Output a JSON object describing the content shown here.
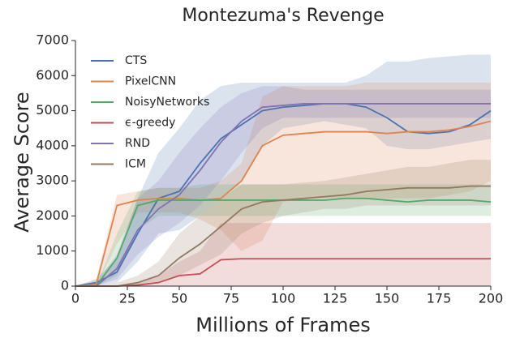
{
  "chart_data": {
    "type": "line",
    "title": "Montezuma's Revenge",
    "xlabel": "Millions of Frames",
    "ylabel": "Average Score",
    "x": [
      0,
      10,
      20,
      30,
      40,
      50,
      60,
      70,
      80,
      90,
      100,
      110,
      120,
      130,
      140,
      150,
      160,
      170,
      180,
      190,
      200
    ],
    "xlim": [
      0,
      200
    ],
    "xticks": [
      0,
      25,
      50,
      75,
      100,
      125,
      150,
      175,
      200
    ],
    "ylim": [
      0,
      7000
    ],
    "yticks": [
      0,
      1000,
      2000,
      3000,
      4000,
      5000,
      6000,
      7000
    ],
    "legend": "upper left",
    "series": [
      {
        "name": "CTS",
        "color": "#4c72b0",
        "values": [
          0,
          100,
          400,
          1500,
          2500,
          2700,
          3500,
          4200,
          4600,
          5000,
          5100,
          5150,
          5200,
          5200,
          5100,
          4800,
          4400,
          4350,
          4400,
          4600,
          5000
        ],
        "upper": [
          0,
          200,
          800,
          2500,
          3800,
          4500,
          5300,
          5700,
          5800,
          5800,
          5800,
          5800,
          5800,
          5800,
          6000,
          6400,
          6400,
          6500,
          6550,
          6600,
          6600
        ],
        "lower": [
          0,
          0,
          100,
          700,
          1500,
          1600,
          2000,
          2500,
          3000,
          4000,
          4500,
          4600,
          4700,
          4600,
          4500,
          4000,
          3900,
          3900,
          4000,
          4100,
          4200
        ]
      },
      {
        "name": "PixelCNN",
        "color": "#dd8452",
        "values": [
          0,
          50,
          2300,
          2450,
          2500,
          2500,
          2450,
          2500,
          3000,
          4000,
          4300,
          4350,
          4400,
          4400,
          4400,
          4350,
          4400,
          4400,
          4450,
          4550,
          4700
        ],
        "upper": [
          0,
          200,
          2600,
          2700,
          2800,
          2800,
          2800,
          3000,
          3500,
          5400,
          5700,
          5700,
          5700,
          5700,
          5800,
          5800,
          5800,
          5800,
          5800,
          5800,
          5800
        ],
        "lower": [
          0,
          0,
          1200,
          2100,
          2100,
          2100,
          1900,
          1600,
          1000,
          1300,
          2400,
          2500,
          2500,
          2500,
          2500,
          2500,
          2500,
          2500,
          2600,
          2700,
          3000
        ]
      },
      {
        "name": "NoisyNetworks",
        "color": "#55a868",
        "values": [
          0,
          0,
          800,
          2300,
          2450,
          2450,
          2450,
          2450,
          2450,
          2450,
          2450,
          2450,
          2450,
          2500,
          2500,
          2450,
          2400,
          2450,
          2450,
          2450,
          2400
        ],
        "upper": [
          0,
          0,
          1500,
          2700,
          2800,
          2800,
          2900,
          2900,
          2900,
          2900,
          2900,
          2900,
          2900,
          2900,
          2900,
          2900,
          2900,
          2900,
          2900,
          2900,
          2900
        ],
        "lower": [
          0,
          0,
          300,
          1600,
          2000,
          2000,
          2000,
          2000,
          2000,
          2000,
          2000,
          2000,
          2000,
          2000,
          2000,
          2000,
          2000,
          2000,
          2000,
          2000,
          2000
        ]
      },
      {
        "name": "ϵ-greedy",
        "color": "#c44e52",
        "values": [
          0,
          0,
          0,
          30,
          100,
          300,
          350,
          750,
          780,
          780,
          780,
          780,
          780,
          780,
          780,
          780,
          780,
          780,
          780,
          780,
          780
        ],
        "upper": [
          0,
          0,
          0,
          100,
          300,
          700,
          1000,
          1800,
          1800,
          1800,
          1800,
          1800,
          1800,
          1800,
          1800,
          1800,
          1800,
          1800,
          1800,
          1800,
          1800
        ],
        "lower": [
          0,
          0,
          0,
          0,
          0,
          0,
          0,
          0,
          0,
          0,
          0,
          0,
          0,
          0,
          0,
          0,
          0,
          0,
          0,
          0,
          0
        ]
      },
      {
        "name": "RND",
        "color": "#8172b2",
        "values": [
          0,
          0,
          500,
          1600,
          2200,
          2600,
          3300,
          4100,
          4700,
          5100,
          5150,
          5200,
          5200,
          5200,
          5200,
          5200,
          5200,
          5200,
          5200,
          5200,
          5200
        ],
        "upper": [
          0,
          100,
          900,
          2500,
          3000,
          3800,
          4500,
          5100,
          5500,
          5700,
          5700,
          5600,
          5600,
          5600,
          5600,
          5600,
          5600,
          5600,
          5600,
          5600,
          5600
        ],
        "lower": [
          0,
          0,
          200,
          900,
          1400,
          1800,
          2300,
          3000,
          3800,
          4500,
          4800,
          4800,
          4800,
          4800,
          4800,
          4800,
          4800,
          4800,
          4800,
          4800,
          4800
        ]
      },
      {
        "name": "ICM",
        "color": "#937860",
        "values": [
          0,
          0,
          0,
          100,
          300,
          800,
          1200,
          1700,
          2200,
          2400,
          2450,
          2500,
          2550,
          2600,
          2700,
          2750,
          2800,
          2800,
          2800,
          2850,
          2850
        ],
        "upper": [
          0,
          0,
          100,
          300,
          700,
          1500,
          2000,
          2500,
          2900,
          2900,
          2900,
          2950,
          3000,
          3100,
          3200,
          3300,
          3400,
          3400,
          3500,
          3600,
          3600
        ],
        "lower": [
          0,
          0,
          0,
          0,
          100,
          300,
          600,
          900,
          1500,
          1800,
          2000,
          2100,
          2200,
          2200,
          2300,
          2300,
          2300,
          2300,
          2300,
          2300,
          2300
        ]
      }
    ]
  }
}
